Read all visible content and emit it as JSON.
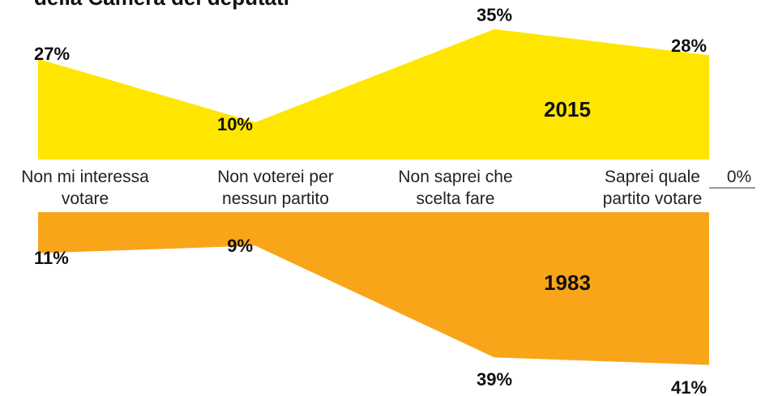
{
  "chart_data": {
    "type": "mirrored-area",
    "title": "della Camera dei deputati",
    "categories": [
      [
        "Non mi interessa",
        "votare"
      ],
      [
        "Non voterei per",
        "nessun partito"
      ],
      [
        "Non saprei che",
        "scelta fare"
      ],
      [
        "Saprei quale",
        "partito votare"
      ]
    ],
    "series": [
      {
        "name": "2015",
        "color": "#ffe600",
        "values": [
          27,
          10,
          35,
          28
        ],
        "value_labels": [
          "27%",
          "10%",
          "35%",
          "28%"
        ]
      },
      {
        "name": "1983",
        "color": "#f9a51a",
        "values": [
          11,
          9,
          39,
          41
        ],
        "value_labels": [
          "11%",
          "9%",
          "39%",
          "41%"
        ]
      }
    ],
    "ylim": [
      0,
      40
    ],
    "yticks": [
      {
        "value": 0,
        "label": "0%"
      }
    ]
  }
}
